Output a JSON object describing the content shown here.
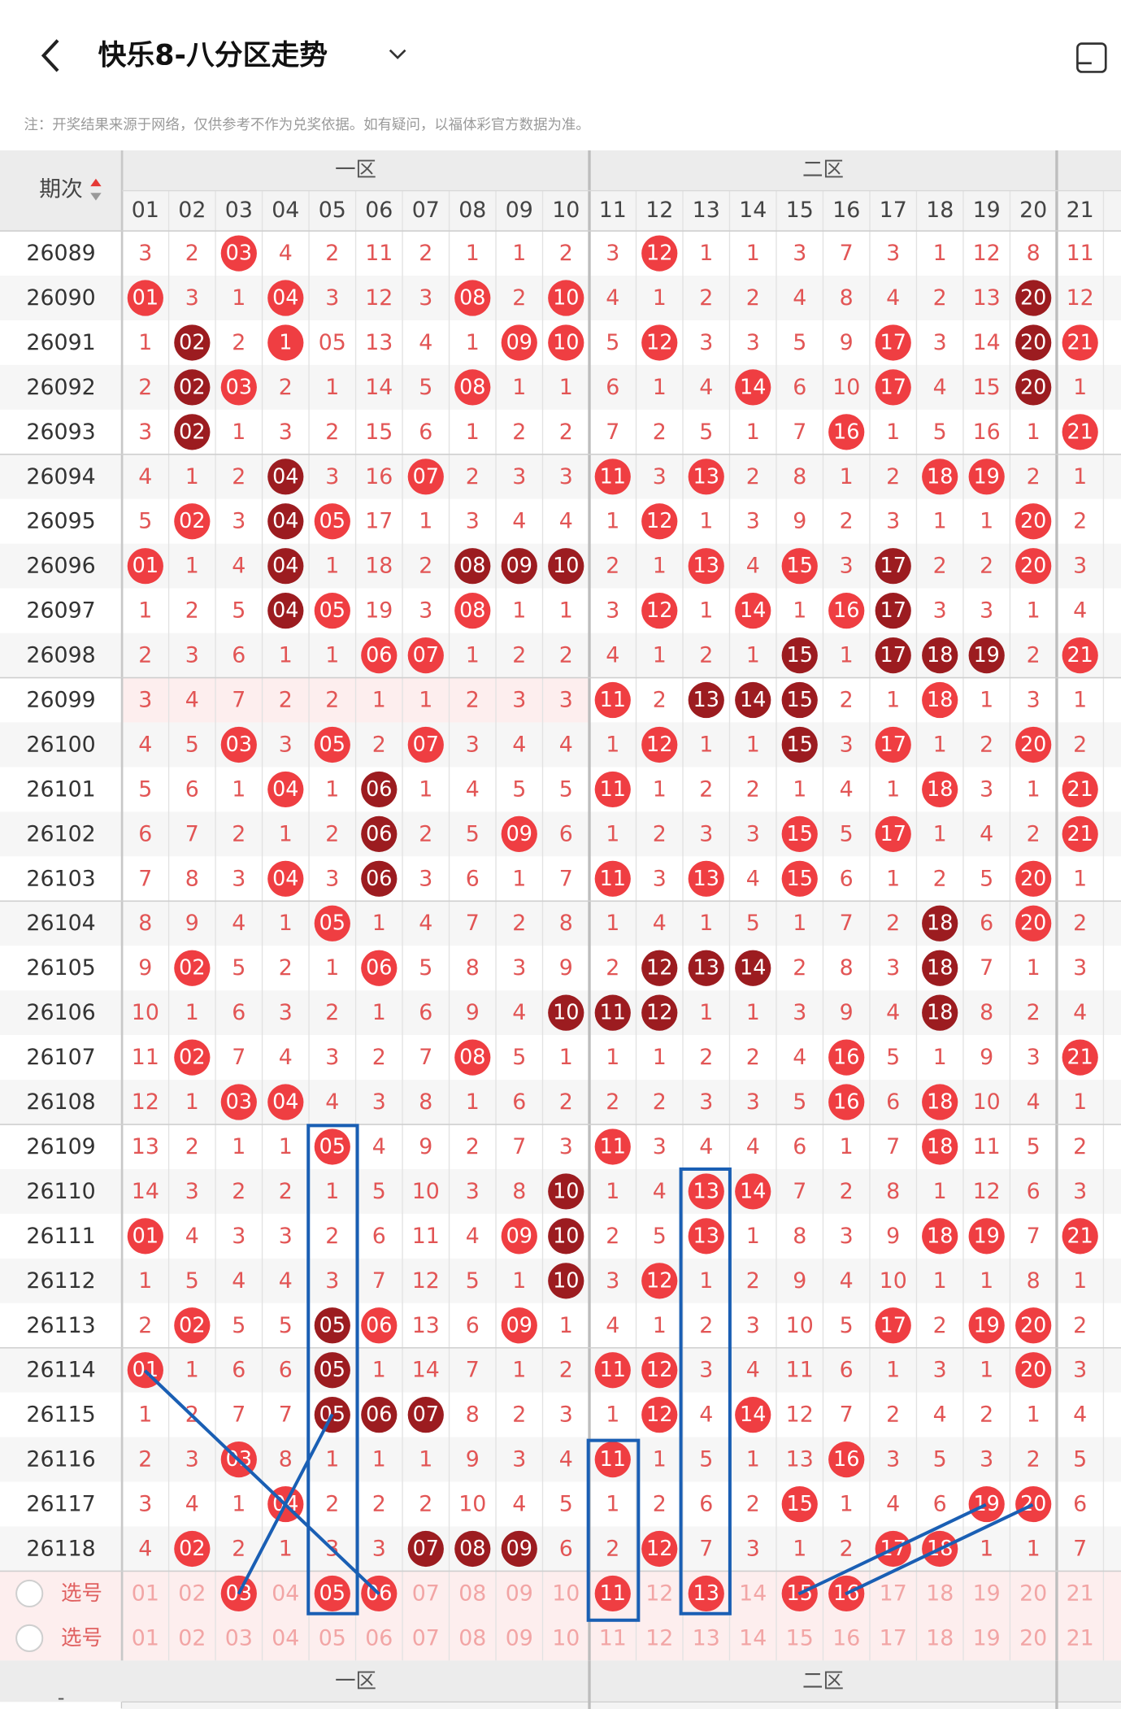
{
  "header": {
    "title": "快乐8-八分区走势",
    "note": "注：开奖结果来源于网络，仅供参考不作为兑奖依据。如有疑问，以福体彩官方数据为准。"
  },
  "table": {
    "sort_label": "期次",
    "zones": [
      "一区",
      "二区"
    ],
    "columns": [
      "01",
      "02",
      "03",
      "04",
      "05",
      "06",
      "07",
      "08",
      "09",
      "10",
      "11",
      "12",
      "13",
      "14",
      "15",
      "16",
      "17",
      "18",
      "19",
      "20",
      "21"
    ],
    "rows": [
      {
        "period": "26089",
        "cells": [
          "3",
          "2",
          "03",
          "4",
          "2",
          "11",
          "2",
          "1",
          "1",
          "2",
          "3",
          "12",
          "1",
          "1",
          "3",
          "7",
          "3",
          "1",
          "12",
          "8",
          "11"
        ],
        "kind": "001000000001000000000"
      },
      {
        "period": "26090",
        "cells": [
          "01",
          "3",
          "1",
          "04",
          "3",
          "12",
          "3",
          "08",
          "2",
          "10",
          "4",
          "1",
          "2",
          "2",
          "4",
          "8",
          "4",
          "2",
          "13",
          "20",
          "12"
        ],
        "kind": "100100010100000000020"
      },
      {
        "period": "26091",
        "cells": [
          "1",
          "02",
          "2",
          "1",
          "05",
          "13",
          "4",
          "1",
          "09",
          "10",
          "5",
          "12",
          "3",
          "3",
          "5",
          "9",
          "17",
          "3",
          "14",
          "20",
          "21"
        ],
        "kind": "020100001101000010021"
      },
      {
        "period": "26092",
        "cells": [
          "2",
          "02",
          "03",
          "2",
          "1",
          "14",
          "5",
          "08",
          "1",
          "1",
          "6",
          "1",
          "4",
          "14",
          "6",
          "10",
          "17",
          "4",
          "15",
          "20",
          "1"
        ],
        "kind": "021000010000010010020"
      },
      {
        "period": "26093",
        "cells": [
          "3",
          "02",
          "1",
          "3",
          "2",
          "15",
          "6",
          "1",
          "2",
          "2",
          "7",
          "2",
          "5",
          "1",
          "7",
          "16",
          "1",
          "5",
          "16",
          "1",
          "21"
        ],
        "kind": "020000000000000100001"
      },
      {
        "period": "26094",
        "cells": [
          "4",
          "1",
          "2",
          "04",
          "3",
          "16",
          "07",
          "2",
          "3",
          "3",
          "11",
          "3",
          "13",
          "2",
          "8",
          "1",
          "2",
          "18",
          "19",
          "2",
          "1"
        ],
        "kind": "000200100010100001100"
      },
      {
        "period": "26095",
        "cells": [
          "5",
          "02",
          "3",
          "04",
          "05",
          "17",
          "1",
          "3",
          "4",
          "4",
          "1",
          "12",
          "1",
          "3",
          "9",
          "2",
          "3",
          "1",
          "1",
          "20",
          "2"
        ],
        "kind": "010210000001000000010"
      },
      {
        "period": "26096",
        "cells": [
          "01",
          "1",
          "4",
          "04",
          "1",
          "18",
          "2",
          "08",
          "09",
          "10",
          "2",
          "1",
          "13",
          "4",
          "15",
          "3",
          "17",
          "2",
          "2",
          "20",
          "3"
        ],
        "kind": "100200022200101020010"
      },
      {
        "period": "26097",
        "cells": [
          "1",
          "2",
          "5",
          "04",
          "05",
          "19",
          "3",
          "08",
          "1",
          "1",
          "3",
          "12",
          "1",
          "14",
          "1",
          "16",
          "17",
          "3",
          "3",
          "1",
          "4"
        ],
        "kind": "000210010001010120000"
      },
      {
        "period": "26098",
        "cells": [
          "2",
          "3",
          "6",
          "1",
          "1",
          "06",
          "07",
          "1",
          "2",
          "2",
          "4",
          "1",
          "2",
          "1",
          "15",
          "1",
          "17",
          "18",
          "19",
          "2",
          "21"
        ],
        "kind": "000001100000002022201"
      },
      {
        "period": "26099",
        "cells": [
          "3",
          "4",
          "7",
          "2",
          "2",
          "1",
          "1",
          "2",
          "3",
          "3",
          "11",
          "2",
          "13",
          "14",
          "15",
          "2",
          "1",
          "18",
          "1",
          "3",
          "1"
        ],
        "kind": "000000000010222001000",
        "highlight": true
      },
      {
        "period": "26100",
        "cells": [
          "4",
          "5",
          "03",
          "3",
          "05",
          "2",
          "07",
          "3",
          "4",
          "4",
          "1",
          "12",
          "1",
          "1",
          "15",
          "3",
          "17",
          "1",
          "2",
          "20",
          "2"
        ],
        "kind": "001010100001002010010"
      },
      {
        "period": "26101",
        "cells": [
          "5",
          "6",
          "1",
          "04",
          "1",
          "06",
          "1",
          "4",
          "5",
          "5",
          "11",
          "1",
          "2",
          "2",
          "1",
          "4",
          "1",
          "18",
          "3",
          "1",
          "21"
        ],
        "kind": "000102000010000001001"
      },
      {
        "period": "26102",
        "cells": [
          "6",
          "7",
          "2",
          "1",
          "2",
          "06",
          "2",
          "5",
          "09",
          "6",
          "1",
          "2",
          "3",
          "3",
          "15",
          "5",
          "17",
          "1",
          "4",
          "2",
          "21"
        ],
        "kind": "000002001000001010001"
      },
      {
        "period": "26103",
        "cells": [
          "7",
          "8",
          "3",
          "04",
          "3",
          "06",
          "3",
          "6",
          "1",
          "7",
          "11",
          "3",
          "13",
          "4",
          "15",
          "6",
          "1",
          "2",
          "5",
          "20",
          "1"
        ],
        "kind": "000102000010101000010"
      },
      {
        "period": "26104",
        "cells": [
          "8",
          "9",
          "4",
          "1",
          "05",
          "1",
          "4",
          "7",
          "2",
          "8",
          "1",
          "4",
          "1",
          "5",
          "1",
          "7",
          "2",
          "18",
          "6",
          "20",
          "2"
        ],
        "kind": "000010000000000002010"
      },
      {
        "period": "26105",
        "cells": [
          "9",
          "02",
          "5",
          "2",
          "1",
          "06",
          "5",
          "8",
          "3",
          "9",
          "2",
          "12",
          "13",
          "14",
          "2",
          "8",
          "3",
          "18",
          "7",
          "1",
          "3"
        ],
        "kind": "010001000002220002000"
      },
      {
        "period": "26106",
        "cells": [
          "10",
          "1",
          "6",
          "3",
          "2",
          "1",
          "6",
          "9",
          "4",
          "10",
          "11",
          "12",
          "1",
          "1",
          "3",
          "9",
          "4",
          "18",
          "8",
          "2",
          "4"
        ],
        "kind": "000000000222000002000"
      },
      {
        "period": "26107",
        "cells": [
          "11",
          "02",
          "7",
          "4",
          "3",
          "2",
          "7",
          "08",
          "5",
          "1",
          "1",
          "1",
          "2",
          "2",
          "4",
          "16",
          "5",
          "1",
          "9",
          "3",
          "21"
        ],
        "kind": "010000010000000100001"
      },
      {
        "period": "26108",
        "cells": [
          "12",
          "1",
          "03",
          "04",
          "4",
          "3",
          "8",
          "1",
          "6",
          "2",
          "2",
          "2",
          "3",
          "3",
          "5",
          "16",
          "6",
          "18",
          "10",
          "4",
          "1"
        ],
        "kind": "001100000000000101000"
      },
      {
        "period": "26109",
        "cells": [
          "13",
          "2",
          "1",
          "1",
          "05",
          "4",
          "9",
          "2",
          "7",
          "3",
          "11",
          "3",
          "4",
          "4",
          "6",
          "1",
          "7",
          "18",
          "11",
          "5",
          "2"
        ],
        "kind": "000010000010000001000"
      },
      {
        "period": "26110",
        "cells": [
          "14",
          "3",
          "2",
          "2",
          "1",
          "5",
          "10",
          "3",
          "8",
          "10",
          "1",
          "4",
          "13",
          "14",
          "7",
          "2",
          "8",
          "1",
          "12",
          "6",
          "3"
        ],
        "kind": "000000000200110000000"
      },
      {
        "period": "26111",
        "cells": [
          "01",
          "4",
          "3",
          "3",
          "2",
          "6",
          "11",
          "4",
          "09",
          "10",
          "2",
          "5",
          "13",
          "1",
          "8",
          "3",
          "9",
          "18",
          "19",
          "7",
          "21"
        ],
        "kind": "100000001200100001101"
      },
      {
        "period": "26112",
        "cells": [
          "1",
          "5",
          "4",
          "4",
          "3",
          "7",
          "12",
          "5",
          "1",
          "10",
          "3",
          "12",
          "1",
          "2",
          "9",
          "4",
          "10",
          "1",
          "1",
          "8",
          "1"
        ],
        "kind": "000000000201000000000"
      },
      {
        "period": "26113",
        "cells": [
          "2",
          "02",
          "5",
          "5",
          "05",
          "06",
          "13",
          "6",
          "09",
          "1",
          "4",
          "1",
          "2",
          "3",
          "10",
          "5",
          "17",
          "2",
          "19",
          "20",
          "2"
        ],
        "kind": "010021001000000010110"
      },
      {
        "period": "26114",
        "cells": [
          "01",
          "1",
          "6",
          "6",
          "05",
          "1",
          "14",
          "7",
          "1",
          "2",
          "11",
          "12",
          "3",
          "4",
          "11",
          "6",
          "1",
          "3",
          "1",
          "20",
          "3"
        ],
        "kind": "100020000011000000010"
      },
      {
        "period": "26115",
        "cells": [
          "1",
          "2",
          "7",
          "7",
          "05",
          "06",
          "07",
          "8",
          "2",
          "3",
          "1",
          "12",
          "4",
          "14",
          "12",
          "7",
          "2",
          "4",
          "2",
          "1",
          "4"
        ],
        "kind": "000022200001010000000"
      },
      {
        "period": "26116",
        "cells": [
          "2",
          "3",
          "03",
          "8",
          "1",
          "1",
          "1",
          "9",
          "3",
          "4",
          "11",
          "1",
          "5",
          "1",
          "13",
          "16",
          "3",
          "5",
          "3",
          "2",
          "5"
        ],
        "kind": "001000000010000100000"
      },
      {
        "period": "26117",
        "cells": [
          "3",
          "4",
          "1",
          "04",
          "2",
          "2",
          "2",
          "10",
          "4",
          "5",
          "1",
          "2",
          "6",
          "2",
          "15",
          "1",
          "4",
          "6",
          "19",
          "20",
          "6"
        ],
        "kind": "000100000000001000110"
      },
      {
        "period": "26118",
        "cells": [
          "4",
          "02",
          "2",
          "1",
          "3",
          "3",
          "07",
          "08",
          "09",
          "6",
          "2",
          "12",
          "7",
          "3",
          "1",
          "2",
          "17",
          "18",
          "1",
          "1",
          "7"
        ],
        "kind": "010000222001000011000"
      }
    ],
    "select_rows": [
      {
        "label": "选号",
        "cells": [
          "01",
          "02",
          "03",
          "04",
          "05",
          "06",
          "07",
          "08",
          "09",
          "10",
          "11",
          "12",
          "13",
          "14",
          "15",
          "16",
          "17",
          "18",
          "19",
          "20",
          "21"
        ],
        "kind": "331311333313131133333"
      },
      {
        "label": "选号",
        "cells": [
          "01",
          "02",
          "03",
          "04",
          "05",
          "06",
          "07",
          "08",
          "09",
          "10",
          "11",
          "12",
          "13",
          "14",
          "15",
          "16",
          "17",
          "18",
          "19",
          "20",
          "21"
        ],
        "kind": "333333333333333333333"
      }
    ],
    "footer_zones": [
      "一区",
      "二区"
    ],
    "footer_mark": "-"
  }
}
